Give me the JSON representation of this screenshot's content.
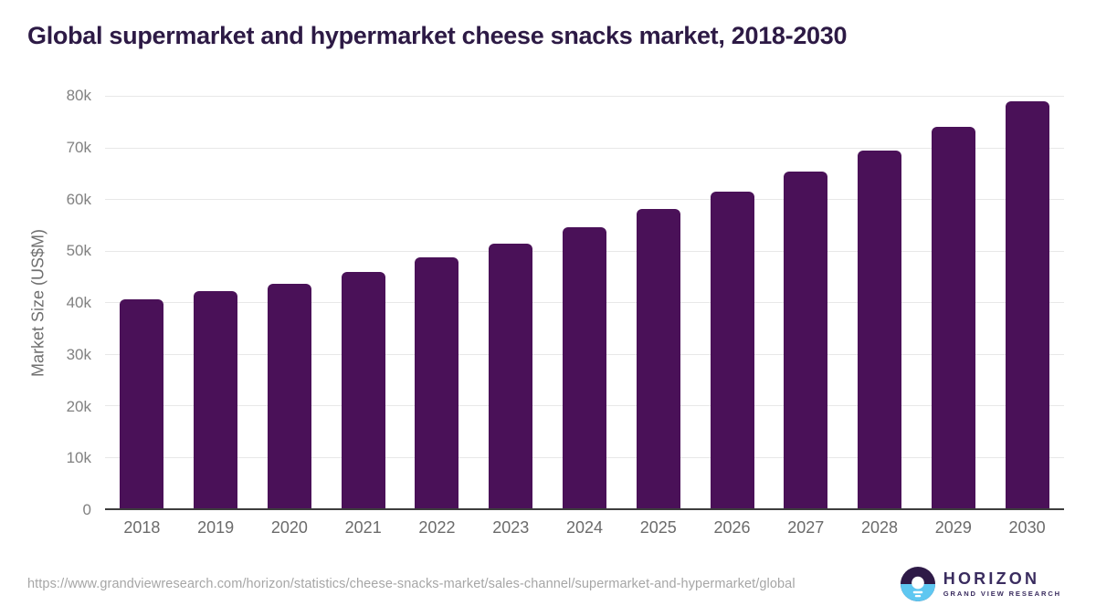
{
  "title": "Global supermarket and hypermarket cheese snacks market, 2018-2030",
  "chart_data": {
    "type": "bar",
    "title": "Global supermarket and hypermarket cheese snacks market, 2018-2030",
    "categories": [
      "2018",
      "2019",
      "2020",
      "2021",
      "2022",
      "2023",
      "2024",
      "2025",
      "2026",
      "2027",
      "2028",
      "2029",
      "2030"
    ],
    "values": [
      40600,
      42100,
      43500,
      45900,
      48600,
      51400,
      54600,
      58000,
      61500,
      65300,
      69400,
      74000,
      78900
    ],
    "xlabel": "",
    "ylabel": "Market Size (US$M)",
    "ylim": [
      0,
      80000
    ],
    "yticks": [
      {
        "value": 0,
        "label": "0"
      },
      {
        "value": 10000,
        "label": "10k"
      },
      {
        "value": 20000,
        "label": "20k"
      },
      {
        "value": 30000,
        "label": "30k"
      },
      {
        "value": 40000,
        "label": "40k"
      },
      {
        "value": 50000,
        "label": "50k"
      },
      {
        "value": 60000,
        "label": "60k"
      },
      {
        "value": 70000,
        "label": "70k"
      },
      {
        "value": 80000,
        "label": "80k"
      }
    ],
    "grid": "horizontal",
    "legend": "none",
    "bar_color": "#4a1158"
  },
  "colors": {
    "bar": "#4a1158",
    "title_text": "#2d1a45",
    "gridline": "#e8e8e8",
    "axis_line": "#3d3d3d",
    "tick_text": "#818181",
    "logo_purple": "#3a2c5f",
    "logo_blue": "#5ec7f1"
  },
  "footer": {
    "source_url": "https://www.grandviewresearch.com/horizon/statistics/cheese-snacks-market/sales-channel/supermarket-and-hypermarket/global",
    "logo_name": "HORIZON",
    "logo_subtitle": "GRAND VIEW RESEARCH"
  }
}
